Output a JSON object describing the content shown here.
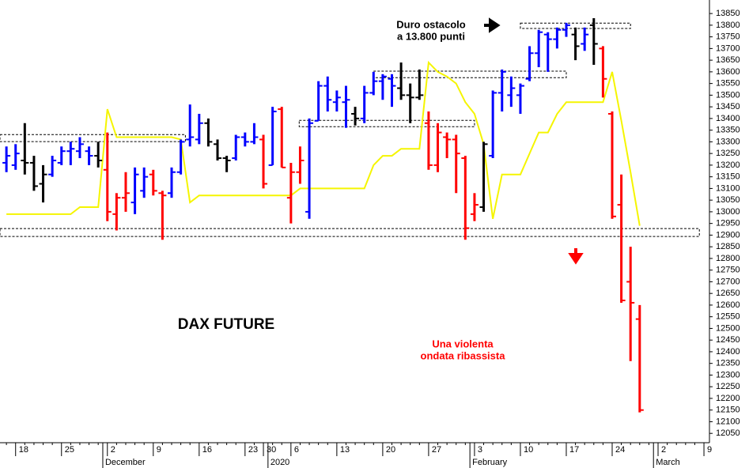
{
  "chart_data": {
    "type": "ohlc",
    "title": "DAX FUTURE",
    "categories": [
      null,
      "18",
      null,
      null,
      null,
      null,
      "25",
      null,
      null,
      null,
      null,
      "2",
      null,
      null,
      null,
      null,
      "9",
      null,
      null,
      null,
      null,
      "16",
      null,
      null,
      null,
      null,
      "23",
      null,
      "30",
      null,
      null,
      "6",
      null,
      null,
      null,
      null,
      "13",
      null,
      null,
      null,
      null,
      "20",
      null,
      null,
      null,
      null,
      "27",
      null,
      null,
      null,
      null,
      "3",
      null,
      null,
      null,
      null,
      "10",
      null,
      null,
      null,
      null,
      "17",
      null,
      null,
      null,
      null,
      "24",
      null,
      null,
      null,
      null,
      "2",
      null,
      null,
      null,
      null,
      "9"
    ],
    "month_labels": [
      "December",
      "2020",
      "February",
      "March"
    ],
    "open": [
      13210,
      13200,
      13220,
      13210,
      13120,
      13160,
      13210,
      13260,
      13260,
      13260,
      13240,
      13180,
      12990,
      13060,
      13040,
      13090,
      13160,
      13080,
      13080,
      13170,
      13310,
      13310,
      13380,
      13290,
      13230,
      13230,
      13320,
      13300,
      13310,
      13200,
      13440,
      13060,
      13170,
      13000,
      13390,
      13540,
      13470,
      13470,
      13420,
      13400,
      13510,
      13560,
      13570,
      13530,
      13500,
      13490,
      13380,
      13200,
      13320,
      13310,
      13230,
      12990,
      13020,
      13240,
      13510,
      13500,
      13500,
      13570,
      13680,
      13760,
      13740,
      13780,
      13760,
      13720,
      13800,
      13700,
      13420,
      13030,
      12700,
      12540,
      null,
      null,
      null,
      null,
      null,
      null,
      null
    ],
    "high": [
      13280,
      13290,
      13380,
      13240,
      13200,
      13240,
      13280,
      13300,
      13320,
      13280,
      13300,
      13340,
      13080,
      13170,
      13190,
      13190,
      13180,
      13090,
      13190,
      13310,
      13460,
      13420,
      13400,
      13310,
      13240,
      13330,
      13340,
      13380,
      13330,
      13450,
      13450,
      13210,
      13280,
      13400,
      13560,
      13580,
      13520,
      13540,
      13450,
      13540,
      13600,
      13590,
      13590,
      13640,
      13550,
      13610,
      13430,
      13380,
      13340,
      13330,
      13240,
      13080,
      13300,
      13520,
      13610,
      13580,
      13550,
      13710,
      13780,
      13770,
      13790,
      13810,
      13790,
      13790,
      13830,
      13710,
      13430,
      13160,
      12850,
      12600,
      null,
      null,
      null,
      null,
      null,
      null,
      null
    ],
    "low": [
      13170,
      13180,
      13160,
      13090,
      13040,
      13150,
      13200,
      13200,
      13230,
      13200,
      13190,
      12960,
      12920,
      13000,
      12990,
      13060,
      13070,
      12880,
      13060,
      13160,
      13280,
      13290,
      13280,
      13220,
      13170,
      13220,
      13280,
      13290,
      13100,
      13200,
      13190,
      12950,
      13120,
      12970,
      13390,
      13430,
      13430,
      13360,
      13370,
      13380,
      13500,
      13480,
      13450,
      13480,
      13380,
      13480,
      13180,
      13170,
      13230,
      13080,
      12880,
      12960,
      13000,
      13230,
      13430,
      13450,
      13420,
      13560,
      13620,
      13600,
      13700,
      13750,
      13650,
      13690,
      13630,
      13490,
      12970,
      12610,
      12360,
      12140,
      null,
      null,
      null,
      null,
      null,
      null,
      null
    ],
    "close": [
      13240,
      13250,
      13210,
      13110,
      13160,
      13220,
      13260,
      13270,
      13290,
      13240,
      13220,
      13000,
      13060,
      13080,
      13160,
      13150,
      13090,
      13070,
      13170,
      13300,
      13320,
      13380,
      13300,
      13230,
      13220,
      13320,
      13300,
      13320,
      13120,
      13430,
      13190,
      13170,
      13220,
      13380,
      13540,
      13480,
      13490,
      13480,
      13400,
      13510,
      13560,
      13580,
      13540,
      13500,
      13490,
      13500,
      13200,
      13340,
      13310,
      13250,
      12930,
      13030,
      13290,
      13510,
      13600,
      13530,
      13540,
      13680,
      13770,
      13740,
      13780,
      13800,
      13710,
      13760,
      13720,
      13570,
      12980,
      12620,
      12610,
      12150,
      null,
      null,
      null,
      null,
      null,
      null,
      null
    ],
    "bar_colors": [
      "#0000ff",
      "#0000ff",
      "#000000",
      "#000000",
      "#000000",
      "#0000ff",
      "#0000ff",
      "#0000ff",
      "#0000ff",
      "#0000ff",
      "#000000",
      "#ff0000",
      "#ff0000",
      "#ff0000",
      "#0000ff",
      "#0000ff",
      "#ff0000",
      "#ff0000",
      "#0000ff",
      "#0000ff",
      "#0000ff",
      "#0000ff",
      "#000000",
      "#000000",
      "#000000",
      "#0000ff",
      "#0000ff",
      "#0000ff",
      "#ff0000",
      "#0000ff",
      "#ff0000",
      "#ff0000",
      "#ff0000",
      "#0000ff",
      "#0000ff",
      "#0000ff",
      "#0000ff",
      "#0000ff",
      "#000000",
      "#0000ff",
      "#0000ff",
      "#0000ff",
      "#0000ff",
      "#000000",
      "#000000",
      "#000000",
      "#ff0000",
      "#ff0000",
      "#ff0000",
      "#ff0000",
      "#ff0000",
      "#ff0000",
      "#000000",
      "#0000ff",
      "#0000ff",
      "#0000ff",
      "#0000ff",
      "#0000ff",
      "#0000ff",
      "#0000ff",
      "#0000ff",
      "#0000ff",
      "#000000",
      "#0000ff",
      "#000000",
      "#ff0000",
      "#ff0000",
      "#ff0000",
      "#ff0000",
      "#ff0000",
      null,
      null,
      null,
      null,
      null,
      null,
      null
    ],
    "line": {
      "color": "#f5f500",
      "values": [
        12990,
        12990,
        12990,
        12990,
        12990,
        12990,
        12990,
        12990,
        13020,
        13020,
        13020,
        13440,
        13320,
        13320,
        13320,
        13320,
        13320,
        13320,
        13320,
        13310,
        13040,
        13070,
        13070,
        13070,
        13070,
        13070,
        13070,
        13070,
        13070,
        13070,
        13070,
        13070,
        13100,
        13100,
        13100,
        13100,
        13100,
        13100,
        13100,
        13100,
        13200,
        13240,
        13240,
        13270,
        13270,
        13270,
        13640,
        13600,
        13580,
        13550,
        13470,
        13420,
        13290,
        12970,
        13160,
        13160,
        13160,
        13250,
        13340,
        13340,
        13420,
        13470,
        13470,
        13470,
        13470,
        13470,
        13600,
        13390,
        13170,
        12940,
        null,
        null,
        null,
        null,
        null,
        null,
        null
      ]
    },
    "zones": [
      {
        "x": [
          -0.7,
          19.5
        ],
        "y": [
          13301,
          13331
        ]
      },
      {
        "x": [
          -0.7,
          75.5
        ],
        "y": [
          12894,
          12928
        ]
      },
      {
        "x": [
          31.9,
          51
        ],
        "y": [
          13365,
          13392
        ]
      },
      {
        "x": [
          40,
          61
        ],
        "y": [
          13575,
          13603
        ]
      },
      {
        "x": [
          56,
          68
        ],
        "y": [
          13786,
          13809
        ]
      }
    ],
    "xlim": [
      -0.7,
      76.6
    ],
    "ylim": [
      12010,
      13908
    ],
    "yticks": [
      12050,
      12100,
      12150,
      12200,
      12250,
      12300,
      12350,
      12400,
      12450,
      12500,
      12550,
      12600,
      12650,
      12700,
      12750,
      12800,
      12850,
      12900,
      12950,
      13000,
      13050,
      13100,
      13150,
      13200,
      13250,
      13300,
      13350,
      13400,
      13450,
      13500,
      13550,
      13600,
      13650,
      13700,
      13750,
      13800,
      13850
    ],
    "annotations": [
      {
        "lines": [
          "Duro ostacolo",
          "a 13.800 punti"
        ],
        "color": "#000000"
      },
      {
        "lines": [
          "Una violenta",
          "ondata ribassista"
        ],
        "color": "#ff0000"
      }
    ]
  }
}
